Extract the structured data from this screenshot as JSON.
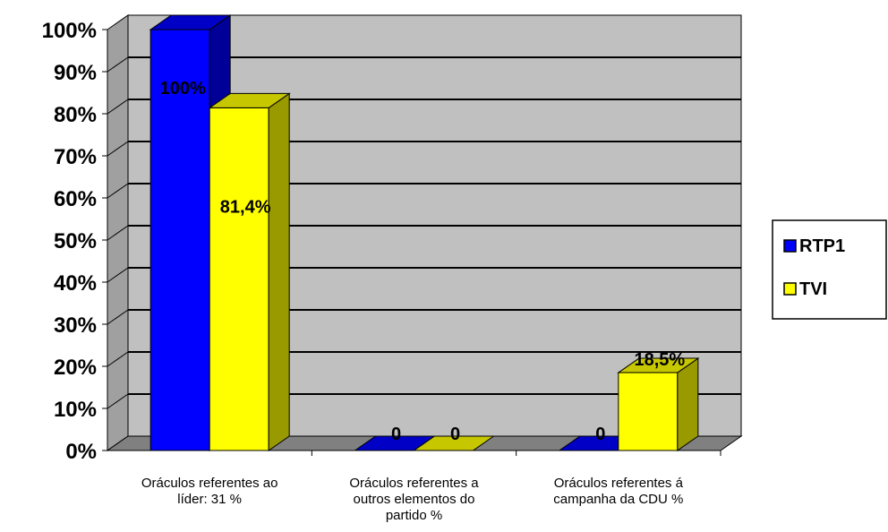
{
  "chart_data": {
    "type": "bar",
    "categories": [
      [
        "Oráculos referentes ao",
        "líder: 31 %"
      ],
      [
        "Oráculos referentes a",
        "outros elementos do",
        "partido %"
      ],
      [
        "Oráculos referentes á",
        "campanha da CDU %"
      ]
    ],
    "series": [
      {
        "name": "RTP1",
        "color": "#0000ff",
        "values": [
          100,
          0,
          0
        ],
        "labels": [
          "100%",
          "0",
          "0"
        ]
      },
      {
        "name": "TVI",
        "color": "#ffff00",
        "values": [
          81.4,
          0,
          18.5
        ],
        "labels": [
          "81,4%",
          "0",
          "18,5%"
        ]
      }
    ],
    "y_ticks": [
      "0%",
      "10%",
      "20%",
      "30%",
      "40%",
      "50%",
      "60%",
      "70%",
      "80%",
      "90%",
      "100%"
    ],
    "ylim": [
      0,
      100
    ],
    "grid": true,
    "legend": "right",
    "title": "",
    "xlabel": "",
    "ylabel": ""
  }
}
